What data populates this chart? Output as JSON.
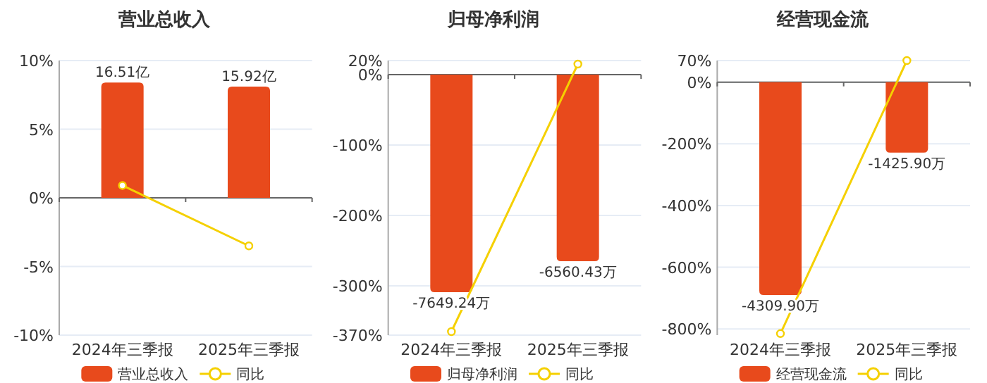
{
  "chart_data": [
    {
      "type": "bar",
      "title": "营业总收入",
      "categories": [
        "2024年三季报",
        "2025年三季报"
      ],
      "series": [
        {
          "name": "营业总收入",
          "axis": "y2",
          "color": "#e84a1c",
          "values": [
            16.51,
            15.92
          ],
          "value_labels": [
            "16.51亿",
            "15.92亿"
          ]
        },
        {
          "name": "同比",
          "type": "line",
          "color": "#f5d000",
          "marker": "circle",
          "values": [
            0.9,
            -3.5
          ]
        }
      ],
      "ylim": [
        -10,
        10
      ],
      "yticks": [
        {
          "value": 10,
          "label": "10%"
        },
        {
          "value": 5,
          "label": "5%"
        },
        {
          "value": 0,
          "label": "0%"
        },
        {
          "value": -5,
          "label": "-5%"
        },
        {
          "value": -10,
          "label": "-10%"
        }
      ],
      "y2lim": [
        -19.65,
        19.65
      ],
      "grid": "y",
      "legend": "bottom"
    },
    {
      "type": "bar",
      "title": "归母净利润",
      "categories": [
        "2024年三季报",
        "2025年三季报"
      ],
      "series": [
        {
          "name": "归母净利润",
          "axis": "y2",
          "color": "#e84a1c",
          "values": [
            -7649.24,
            -6560.43
          ],
          "value_labels": [
            "-7649.24万",
            "-6560.43万"
          ]
        },
        {
          "name": "同比",
          "type": "line",
          "color": "#f5d000",
          "marker": "circle",
          "values": [
            -365,
            15
          ]
        }
      ],
      "ylim": [
        -370,
        20
      ],
      "yticks": [
        {
          "value": 20,
          "label": "20%"
        },
        {
          "value": 0,
          "label": "0%"
        },
        {
          "value": -100,
          "label": "-100%"
        },
        {
          "value": -200,
          "label": "-200%"
        },
        {
          "value": -300,
          "label": "-300%"
        },
        {
          "value": -370,
          "label": "-370%"
        }
      ],
      "y2lim": [
        -9160,
        495
      ],
      "grid": "y",
      "legend": "bottom"
    },
    {
      "type": "bar",
      "title": "经营现金流",
      "categories": [
        "2024年三季报",
        "2025年三季报"
      ],
      "series": [
        {
          "name": "经营现金流",
          "axis": "y2",
          "color": "#e84a1c",
          "values": [
            -4309.9,
            -1425.9
          ],
          "value_labels": [
            "-4309.90万",
            "-1425.90万"
          ]
        },
        {
          "name": "同比",
          "type": "line",
          "color": "#f5d000",
          "marker": "circle",
          "values": [
            -815,
            70
          ]
        }
      ],
      "ylim": [
        -820,
        70
      ],
      "yticks": [
        {
          "value": 70,
          "label": "70%"
        },
        {
          "value": 0,
          "label": "0%"
        },
        {
          "value": -200,
          "label": "-200%"
        },
        {
          "value": -400,
          "label": "-400%"
        },
        {
          "value": -600,
          "label": "-600%"
        },
        {
          "value": -800,
          "label": "-800%"
        }
      ],
      "y2lim": [
        -5122,
        437
      ],
      "grid": "y",
      "legend": "bottom"
    }
  ]
}
